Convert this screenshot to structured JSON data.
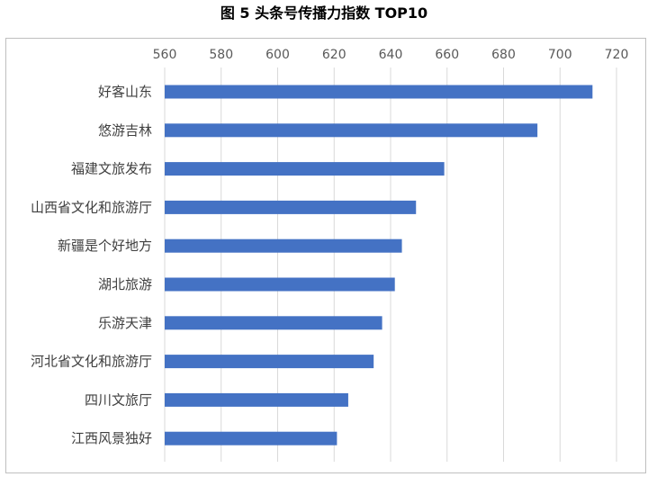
{
  "chart_data": {
    "type": "bar",
    "orientation": "horizontal",
    "title": "图 5  头条号传播力指数 TOP10",
    "categories": [
      "好客山东",
      "悠游吉林",
      "福建文旅发布",
      "山西省文化和旅游厅",
      "新疆是个好地方",
      "湖北旅游",
      "乐游天津",
      "河北省文化和旅游厅",
      "四川文旅厅",
      "江西风景独好"
    ],
    "values": [
      711.5,
      692,
      659,
      649,
      644,
      641.5,
      637,
      634,
      625,
      621
    ],
    "xlim": [
      560,
      720
    ],
    "xticks": [
      "560",
      "580",
      "600",
      "620",
      "640",
      "660",
      "680",
      "700",
      "720"
    ],
    "xlabel": "",
    "ylabel": "",
    "grid": true,
    "bar_color": "#4472C4",
    "grid_color": "#d9d9d9"
  }
}
